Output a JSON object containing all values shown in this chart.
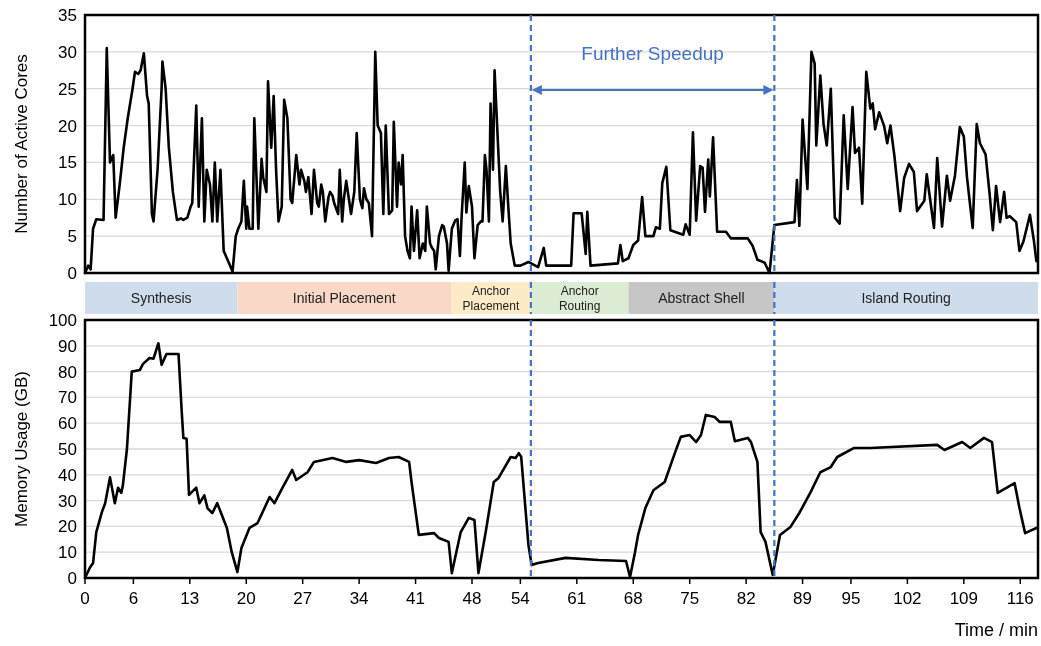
{
  "chart_data": [
    {
      "type": "line",
      "ylabel": "Number of Active Cores",
      "xlim": [
        0,
        118.2
      ],
      "ylim": [
        0,
        35
      ],
      "yticks": [
        0,
        5,
        10,
        15,
        20,
        25,
        30,
        35
      ],
      "grid": "y",
      "tick_labels": "y",
      "series": [
        {
          "color": "#000000",
          "x": [
            0,
            0.4,
            0.7,
            1.0,
            1.4,
            2.3,
            2.7,
            3.1,
            3.5,
            3.8,
            4.3,
            4.8,
            5.3,
            5.9,
            6.2,
            6.6,
            6.9,
            7.3,
            7.7,
            7.9,
            8.3,
            8.5,
            9.0,
            9.5,
            9.6,
            10.0,
            10.4,
            10.9,
            11.4,
            11.9,
            12.2,
            12.7,
            13.1,
            13.3,
            13.8,
            14.1,
            14.5,
            14.8,
            15.1,
            15.5,
            15.8,
            16.1,
            16.4,
            16.8,
            17.2,
            17.8,
            18.3,
            18.7,
            19.0,
            19.4,
            19.7,
            20.0,
            20.1,
            20.4,
            20.8,
            21.0,
            21.5,
            21.9,
            22.1,
            22.5,
            22.7,
            23.1,
            23.4,
            23.7,
            24.0,
            24.4,
            24.7,
            25.1,
            25.5,
            25.7,
            26.2,
            26.6,
            26.8,
            27.2,
            27.4,
            27.7,
            28.1,
            28.4,
            28.8,
            29.0,
            29.3,
            29.5,
            29.8,
            30.2,
            30.4,
            30.7,
            30.9,
            31.4,
            31.6,
            31.9,
            32.1,
            32.4,
            32.8,
            33.0,
            33.4,
            33.7,
            34.1,
            34.4,
            34.6,
            34.9,
            35.2,
            35.6,
            36.0,
            36.3,
            36.7,
            37.0,
            37.3,
            37.7,
            38.1,
            38.3,
            38.7,
            38.9,
            39.2,
            39.4,
            39.7,
            40.0,
            40.3,
            40.5,
            40.8,
            41.2,
            41.5,
            41.9,
            42.2,
            42.4,
            42.8,
            43.0,
            43.3,
            43.5,
            43.9,
            44.3,
            44.5,
            44.9,
            45.1,
            45.5,
            45.9,
            46.2,
            46.5,
            46.7,
            47.1,
            47.3,
            47.6,
            48.0,
            48.3,
            48.7,
            49.1,
            49.3,
            49.6,
            49.8,
            50.1,
            50.3,
            50.6,
            50.8,
            51.2,
            51.5,
            51.8,
            52.2,
            52.5,
            52.8,
            53.3,
            54.0,
            55.0,
            56.2,
            56.9,
            57.2,
            60.3,
            60.6,
            61.6,
            62.1,
            62.3,
            62.7,
            66.1,
            66.4,
            66.7,
            67.4,
            68.0,
            68.6,
            69.1,
            69.5,
            70.5,
            70.8,
            71.3,
            71.6,
            72.1,
            72.6,
            74.2,
            74.5,
            75.0,
            75.4,
            75.8,
            76.3,
            76.6,
            76.9,
            77.3,
            77.5,
            77.9,
            78.4,
            79.5,
            80.1,
            82.2,
            82.8,
            83.4,
            84.3,
            84.9,
            85.5,
            88.0,
            88.3,
            88.6,
            89.0,
            89.6,
            90.1,
            90.5,
            90.7,
            91.2,
            91.6,
            92.0,
            92.5,
            93.0,
            93.6,
            94.1,
            94.6,
            95.2,
            95.5,
            96.0,
            96.4,
            96.9,
            97.4,
            97.7,
            98.0,
            98.5,
            99.1,
            99.5,
            99.9,
            100.4,
            101.1,
            101.6,
            102.2,
            102.8,
            103.2,
            104.1,
            104.4,
            105.3,
            105.7,
            106.3,
            106.9,
            107.3,
            107.9,
            108.5,
            109.0,
            109.4,
            110.1,
            110.6,
            111.0,
            111.7,
            112.2,
            112.6,
            113.0,
            113.5,
            114.0,
            114.3,
            114.7,
            115.5,
            115.9,
            116.4,
            117.2,
            117.7,
            118.0
          ],
          "values": [
            0,
            1,
            0.5,
            6,
            7.3,
            7.2,
            30.5,
            15,
            16,
            7.5,
            12,
            17,
            21,
            25,
            27.3,
            27,
            27.5,
            29.8,
            24,
            23,
            8,
            7,
            14,
            25,
            28.7,
            25,
            17,
            11,
            7.2,
            7.4,
            7.2,
            7.5,
            9,
            9.5,
            22.7,
            9,
            21,
            7,
            14,
            12,
            7,
            15,
            7,
            14,
            3,
            1.5,
            0.2,
            5,
            6,
            7,
            12.5,
            6,
            9,
            6,
            6,
            21,
            6,
            15.5,
            13,
            11,
            26,
            17,
            24,
            14,
            7,
            9,
            23.5,
            21,
            10,
            9.5,
            16,
            12,
            14,
            12.5,
            11,
            13,
            8,
            14,
            9.5,
            9,
            12,
            11,
            7,
            10.3,
            11,
            10.5,
            9.5,
            8,
            14,
            7,
            10,
            12.5,
            9.5,
            8,
            11,
            19,
            10,
            8.8,
            11.5,
            10,
            9.5,
            5,
            30,
            20,
            19,
            8,
            20,
            8,
            8.5,
            20.5,
            9,
            15,
            12,
            16,
            5,
            3,
            2,
            9,
            3,
            8.5,
            2,
            4,
            3,
            9,
            4,
            3.5,
            3,
            0.5,
            5,
            6.5,
            6.3,
            4,
            0.3,
            6,
            7.1,
            7.3,
            2.3,
            7.4,
            15,
            8.2,
            11.8,
            9,
            2,
            6.5,
            7,
            7,
            16,
            14,
            7,
            23,
            14,
            27.5,
            18,
            11,
            7,
            14.5,
            9,
            4,
            1,
            1,
            1.5,
            0.8,
            3.4,
            1,
            1,
            8.1,
            8.1,
            2.6,
            8.3,
            1,
            1.3,
            3.8,
            1.6,
            2,
            3.8,
            4.4,
            10.3,
            5,
            5,
            6.2,
            6,
            12.2,
            14.4,
            5.8,
            5.2,
            6.6,
            5.2,
            19.1,
            7.1,
            14.5,
            14.3,
            8.3,
            15.4,
            10.4,
            18.4,
            5.6,
            5.6,
            4.7,
            4.7,
            3.7,
            1.8,
            1.4,
            0,
            6.5,
            6.9,
            12.6,
            6.4,
            20.8,
            11.4,
            30,
            28.4,
            17.3,
            26.8,
            20.2,
            17.3,
            25,
            7.5,
            6.7,
            21.4,
            11.4,
            22.5,
            16.3,
            17,
            9.4,
            27.3,
            22.3,
            23,
            19.5,
            21.8,
            20,
            17.6,
            20,
            15.8,
            8.4,
            12.9,
            14.8,
            13.7,
            8.4,
            9.8,
            13.4,
            6.1,
            15.6,
            6.3,
            13.2,
            9.8,
            13.2,
            19.8,
            18.5,
            12.9,
            6.1,
            20.2,
            17.6,
            16.1,
            10.7,
            5.8,
            11.8,
            6.9,
            11,
            7.5,
            7.7,
            6.9,
            3,
            4.3,
            7.9,
            4.3,
            1.6
          ]
        }
      ],
      "ref_lines": [
        {
          "axis": "x",
          "value": 55.3,
          "color": "#4472c4",
          "line_style": "dashed"
        },
        {
          "axis": "x",
          "value": 85.5,
          "color": "#4472c4",
          "line_style": "dashed"
        }
      ],
      "annotations": [
        "Further Speedup"
      ]
    },
    {
      "type": "bar",
      "orientation": "horizontal",
      "stacked": true,
      "categories": [
        null
      ],
      "xlim": [
        0,
        118.2
      ],
      "tick_labels": false,
      "series": [
        {
          "name": "Synthesis",
          "color": "#cfdcec",
          "values": [
            18.9
          ]
        },
        {
          "name": "Initial Placement",
          "color": "#f9d8c8",
          "values": [
            26.5
          ]
        },
        {
          "name": "Anchor Placement",
          "color": "#fdebc8",
          "values": [
            9.9
          ]
        },
        {
          "name": "Anchor Routing",
          "color": "#dcebd3",
          "values": [
            12.1
          ]
        },
        {
          "name": "Abstract Shell",
          "color": "#c6c6c6",
          "values": [
            18.1
          ]
        },
        {
          "name": "Island Routing",
          "color": "#cfdcec",
          "values": [
            32.7
          ]
        }
      ],
      "ref_lines": [
        {
          "axis": "x",
          "value": 55.3,
          "color": "#4472c4",
          "line_style": "dashed"
        },
        {
          "axis": "x",
          "value": 85.5,
          "color": "#4472c4",
          "line_style": "dashed"
        }
      ]
    },
    {
      "type": "line",
      "ylabel": "Memory Usage (GB)",
      "xlabel": "Time / min",
      "xlim": [
        0,
        118.2
      ],
      "ylim": [
        0,
        100
      ],
      "yticks": [
        0,
        10,
        20,
        30,
        40,
        50,
        60,
        70,
        80,
        90,
        100
      ],
      "grid": "y",
      "xticks": [
        0,
        6,
        13,
        20,
        27,
        34,
        41,
        48,
        54,
        61,
        68,
        75,
        82,
        89,
        95,
        102,
        109,
        116
      ],
      "series": [
        {
          "color": "#000000",
          "x": [
            0,
            0.6,
            1.0,
            1.4,
            2.1,
            2.5,
            3.1,
            3.7,
            4.1,
            4.5,
            4.7,
            5.2,
            5.8,
            6.8,
            7.2,
            8.0,
            8.5,
            9.1,
            9.5,
            10.1,
            11.6,
            12.0,
            12.2,
            12.6,
            12.9,
            13.8,
            14.2,
            14.8,
            15.2,
            15.8,
            16.4,
            17.6,
            18.2,
            18.9,
            19.4,
            20.4,
            21.4,
            22.9,
            23.5,
            24.5,
            25.7,
            26.2,
            27.6,
            28.4,
            30.7,
            32.4,
            34.0,
            36.1,
            37.7,
            38.9,
            40.2,
            40.5,
            41.4,
            43.3,
            43.9,
            45.1,
            45.5,
            46.6,
            47.6,
            48.3,
            48.8,
            49.7,
            50.7,
            51.3,
            52.8,
            53.4,
            53.8,
            54.1,
            55.0,
            55.4,
            56.2,
            59.6,
            63.7,
            67.1,
            67.6,
            68.2,
            68.6,
            69.5,
            70.5,
            71.9,
            73.2,
            73.9,
            75.0,
            75.8,
            76.4,
            77.0,
            78.1,
            78.7,
            80.1,
            80.6,
            82.2,
            82.6,
            83.4,
            83.8,
            84.4,
            85.3,
            86.2,
            87.5,
            88.6,
            90.0,
            91.2,
            92.5,
            93.3,
            95.4,
            97.4,
            105.7,
            106.6,
            108.8,
            109.8,
            111.5,
            112.5,
            113.2,
            115.3,
            115.9,
            116.6,
            118.0
          ],
          "values": [
            0,
            4,
            5.8,
            17.8,
            25.6,
            29,
            39,
            29,
            35,
            33,
            36,
            50,
            80,
            80.6,
            83,
            85.3,
            85,
            91,
            82.6,
            86.8,
            86.8,
            64.3,
            54.3,
            54,
            32.2,
            35,
            29,
            32,
            27,
            25.2,
            29,
            19.4,
            10,
            2.3,
            11.6,
            19.4,
            21.3,
            31.4,
            29,
            35,
            41.9,
            38,
            41,
            45,
            46.5,
            45,
            45.7,
            44.6,
            46.5,
            46.9,
            45,
            37.2,
            16.7,
            17.4,
            15.5,
            14,
            1.9,
            17.8,
            23.3,
            22.5,
            1.9,
            17.8,
            37.2,
            38.8,
            46.9,
            46.5,
            48.4,
            47,
            12.8,
            5,
            5.8,
            7.8,
            7,
            6.6,
            0.4,
            9.7,
            16.7,
            27.1,
            34,
            37.2,
            48.8,
            54.7,
            55.4,
            52.7,
            55.4,
            63.2,
            62.4,
            60.5,
            60.5,
            53,
            54.3,
            52.7,
            45,
            17.8,
            14,
            1.2,
            16.7,
            19.8,
            25.2,
            33.3,
            41,
            43,
            46.9,
            50.4,
            50.4,
            51.6,
            49.6,
            52.7,
            50.4,
            54.3,
            52.7,
            33,
            36.8,
            27.1,
            17.4,
            19.4
          ]
        }
      ],
      "ref_lines": [
        {
          "axis": "x",
          "value": 55.3,
          "color": "#4472c4",
          "line_style": "dashed"
        },
        {
          "axis": "x",
          "value": 85.5,
          "color": "#4472c4",
          "line_style": "dashed"
        }
      ]
    }
  ]
}
